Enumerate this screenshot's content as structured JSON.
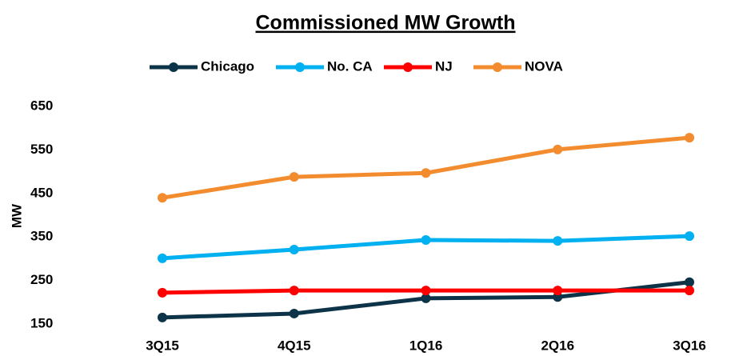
{
  "chart_data": {
    "type": "line",
    "title": "Commissioned MW Growth",
    "y_label": "MW",
    "categories": [
      "3Q15",
      "4Q15",
      "1Q16",
      "2Q16",
      "3Q16"
    ],
    "series": [
      {
        "name": "Chicago",
        "color": "#0d3349",
        "values": [
          165,
          174,
          209,
          212,
          246
        ]
      },
      {
        "name": "No. CA",
        "color": "#00b0f0",
        "values": [
          301,
          321,
          343,
          341,
          352
        ]
      },
      {
        "name": "NJ",
        "color": "#ff0000",
        "values": [
          222,
          227,
          227,
          227,
          227
        ]
      },
      {
        "name": "NOVA",
        "color": "#f38c2f",
        "values": [
          440,
          488,
          497,
          551,
          578
        ]
      }
    ],
    "ylim": [
      150,
      650
    ],
    "yticks": [
      150,
      250,
      350,
      450,
      550,
      650
    ],
    "grid": false,
    "legend": "top"
  }
}
